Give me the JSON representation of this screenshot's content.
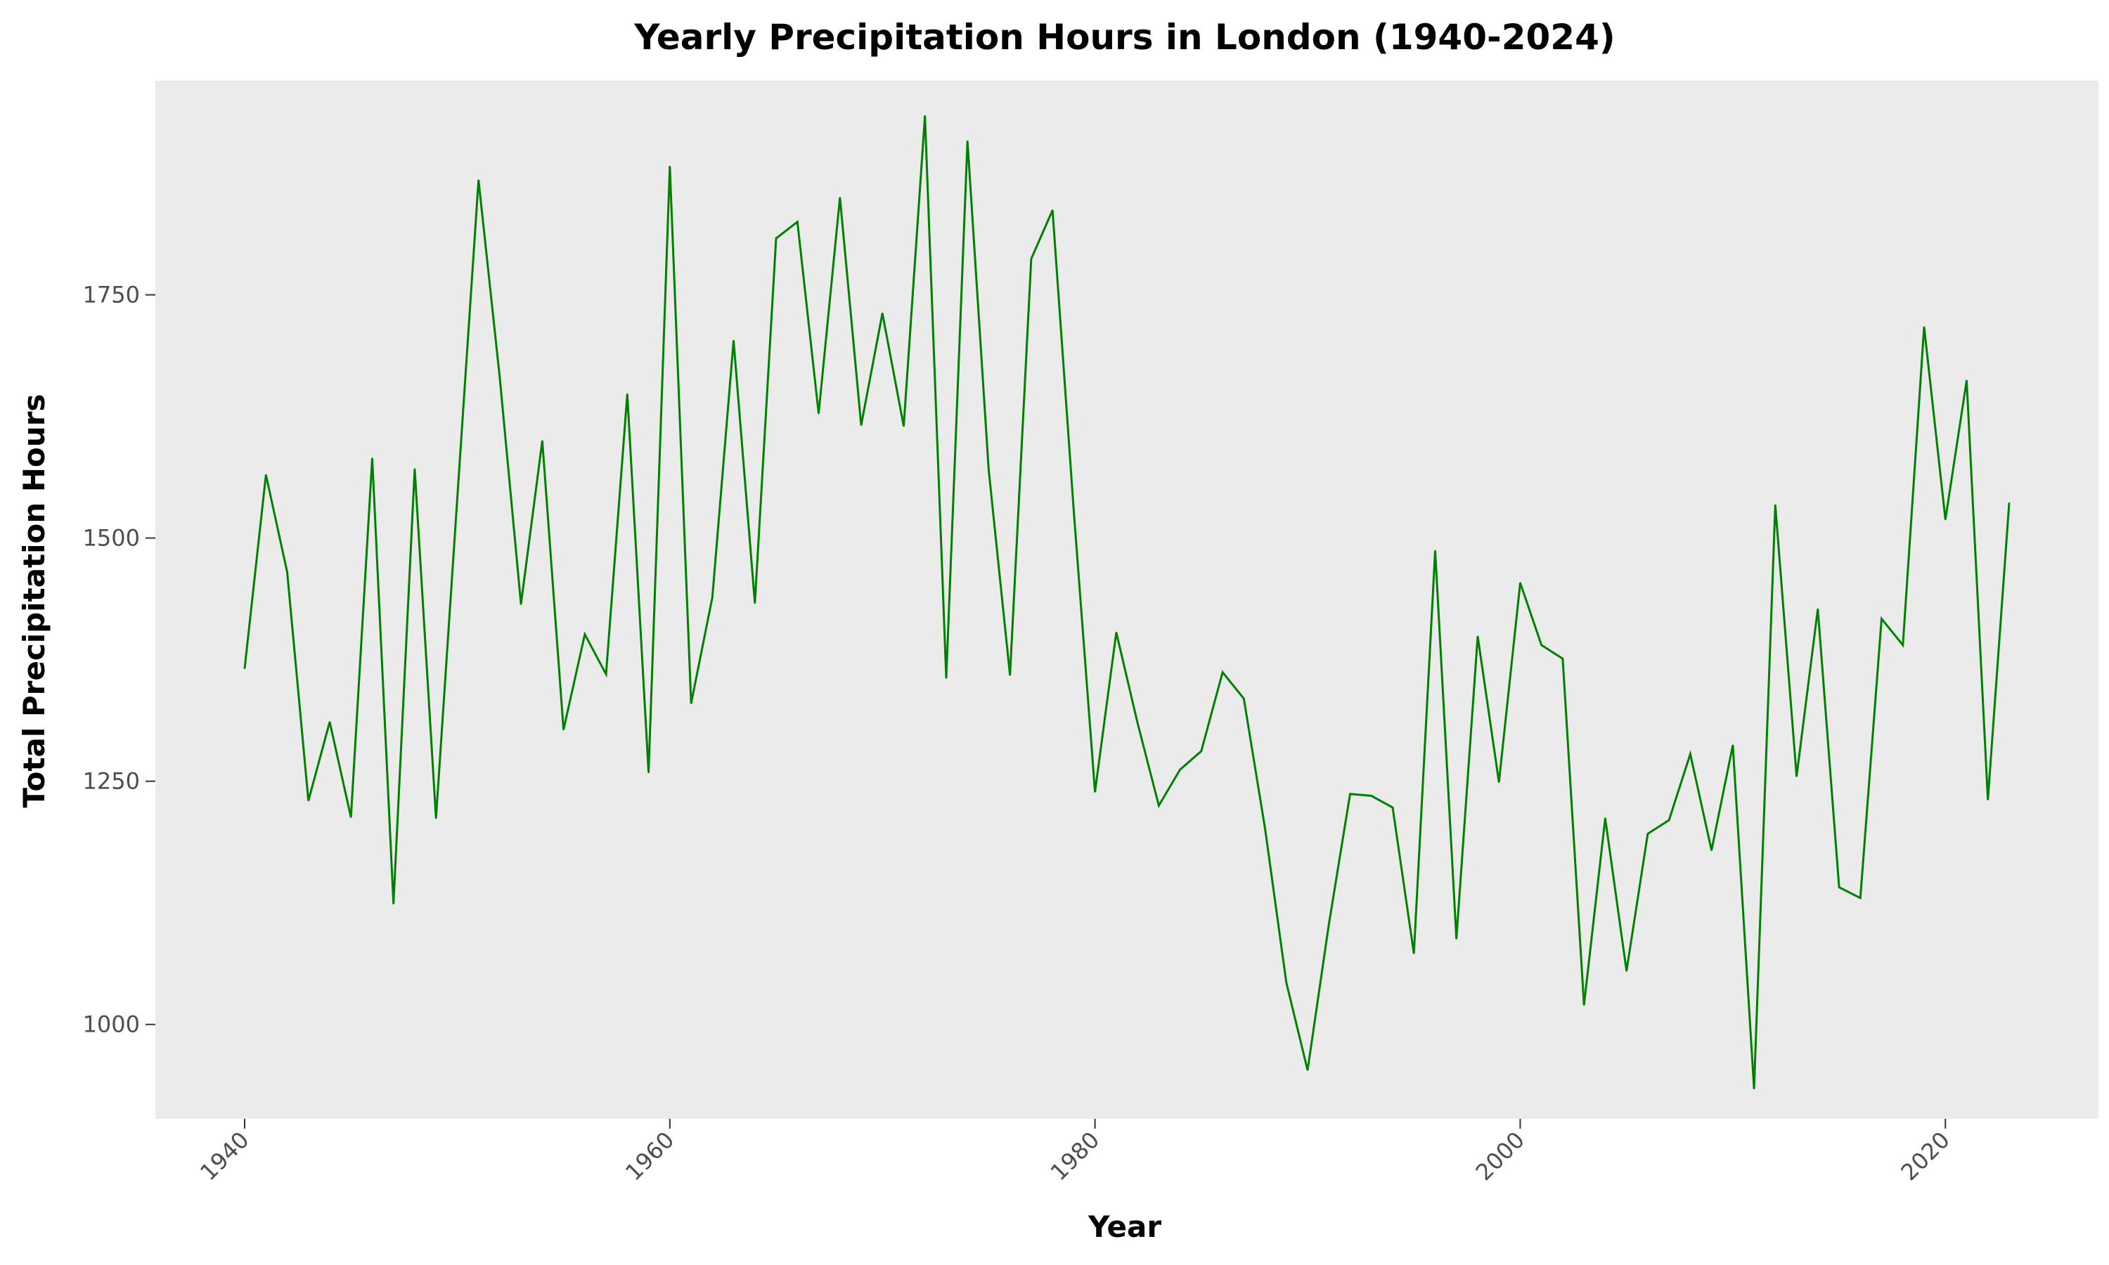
{
  "chart_data": {
    "type": "line",
    "title": "Yearly Precipitation Hours in London (1940-2024)",
    "xlabel": "Year",
    "ylabel": "Total Precipitation Hours",
    "xlim": [
      1935.8,
      2027.2
    ],
    "ylim": [
      903,
      1970
    ],
    "x_ticks": [
      1940,
      1960,
      1980,
      2000,
      2020
    ],
    "y_ticks": [
      1000,
      1250,
      1500,
      1750
    ],
    "grid": false,
    "panel_background": "#ebebeb",
    "line_color": "#008000",
    "series": [
      {
        "x": [
          1940,
          1941,
          1942,
          1943,
          1944,
          1945,
          1946,
          1947,
          1948,
          1949,
          1950,
          1951,
          1952,
          1953,
          1954,
          1955,
          1956,
          1957,
          1958,
          1959,
          1960,
          1961,
          1962,
          1963,
          1964,
          1965,
          1966,
          1967,
          1968,
          1969,
          1970,
          1971,
          1972,
          1973,
          1974,
          1975,
          1976,
          1977,
          1978,
          1979,
          1980,
          1981,
          1982,
          1983,
          1984,
          1985,
          1986,
          1987,
          1988,
          1989,
          1990,
          1991,
          1992,
          1993,
          1994,
          1995,
          1996,
          1997,
          1998,
          1999,
          2000,
          2001,
          2002,
          2003,
          2004,
          2005,
          2006,
          2007,
          2008,
          2009,
          2010,
          2011,
          2012,
          2013,
          2014,
          2015,
          2016,
          2017,
          2018,
          2019,
          2020,
          2021,
          2022,
          2023
        ],
        "values": [
          1366,
          1565,
          1465,
          1230,
          1311,
          1213,
          1582,
          1124,
          1571,
          1212,
          1540,
          1868,
          1665,
          1432,
          1600,
          1303,
          1401,
          1360,
          1648,
          1259,
          1882,
          1330,
          1439,
          1703,
          1433,
          1808,
          1825,
          1628,
          1850,
          1616,
          1731,
          1615,
          1934,
          1356,
          1908,
          1570,
          1359,
          1787,
          1837,
          1528,
          1239,
          1403,
          1310,
          1225,
          1262,
          1281,
          1362,
          1335,
          1201,
          1043,
          953,
          1103,
          1237,
          1235,
          1223,
          1073,
          1487,
          1088,
          1399,
          1249,
          1454,
          1390,
          1376,
          1020,
          1212,
          1055,
          1196,
          1210,
          1278,
          1179,
          1287,
          934,
          1534,
          1255,
          1427,
          1141,
          1130,
          1417,
          1390,
          1717,
          1519,
          1662,
          1231,
          1536
        ]
      }
    ]
  }
}
